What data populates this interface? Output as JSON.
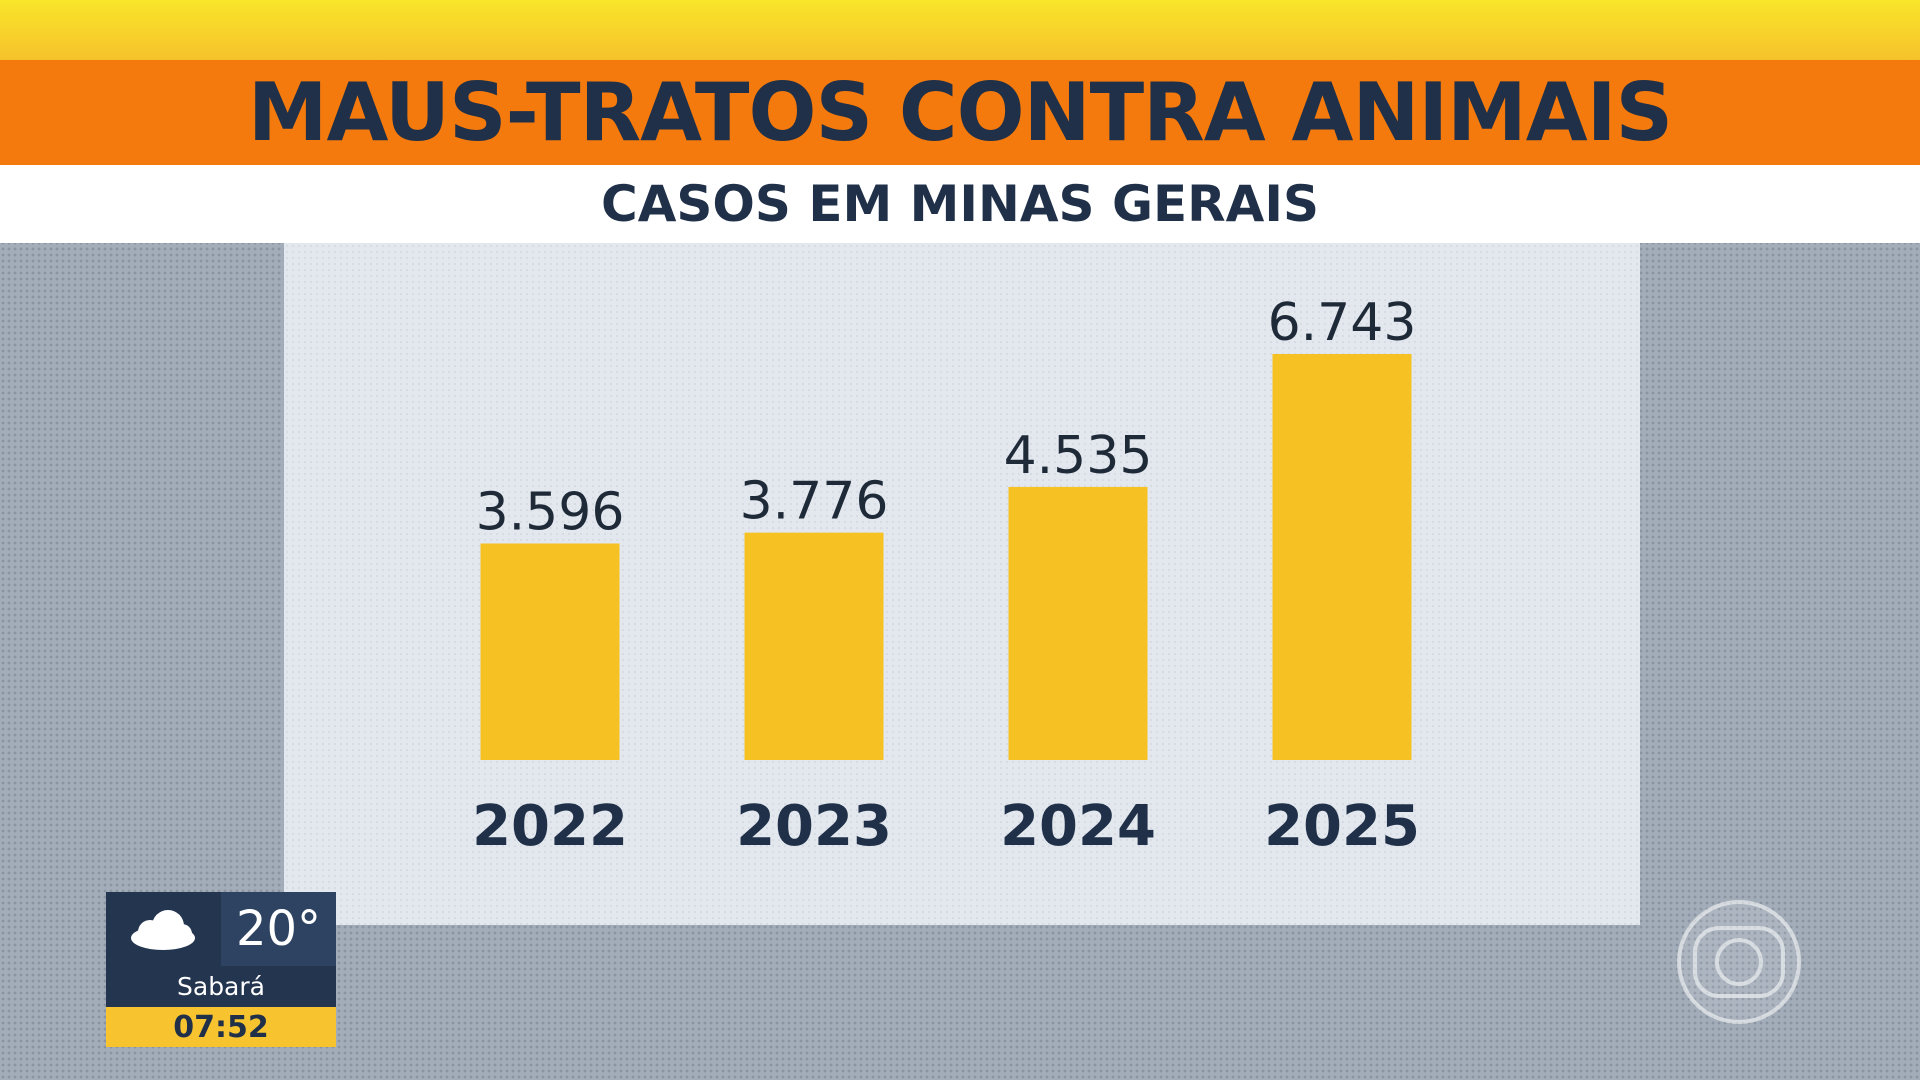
{
  "header": {
    "title": "MAUS-TRATOS CONTRA ANIMAIS",
    "subtitle": "CASOS EM MINAS GERAIS"
  },
  "chart_data": {
    "type": "bar",
    "title": "MAUS-TRATOS CONTRA ANIMAIS",
    "subtitle": "CASOS EM MINAS GERAIS",
    "categories": [
      "2022",
      "2023",
      "2024",
      "2025"
    ],
    "values": [
      3596,
      3776,
      4535,
      6743
    ],
    "value_labels": [
      "3.596",
      "3.776",
      "4.535",
      "6.743"
    ],
    "xlabel": "",
    "ylabel": "",
    "ylim": [
      0,
      6743
    ],
    "grid": false,
    "legend": "none",
    "bar_color": "#f6c122"
  },
  "weather": {
    "icon": "cloud-icon",
    "temperature": "20°",
    "city": "Sabará",
    "time": "07:52"
  },
  "logo": {
    "icon": "broadcaster-logo-icon"
  },
  "colors": {
    "title_band": "#f47a0e",
    "top_strip": "#f9e62a",
    "text_dark": "#1f3048",
    "panel": "#e3e7ee",
    "background": "#a3adb9"
  }
}
